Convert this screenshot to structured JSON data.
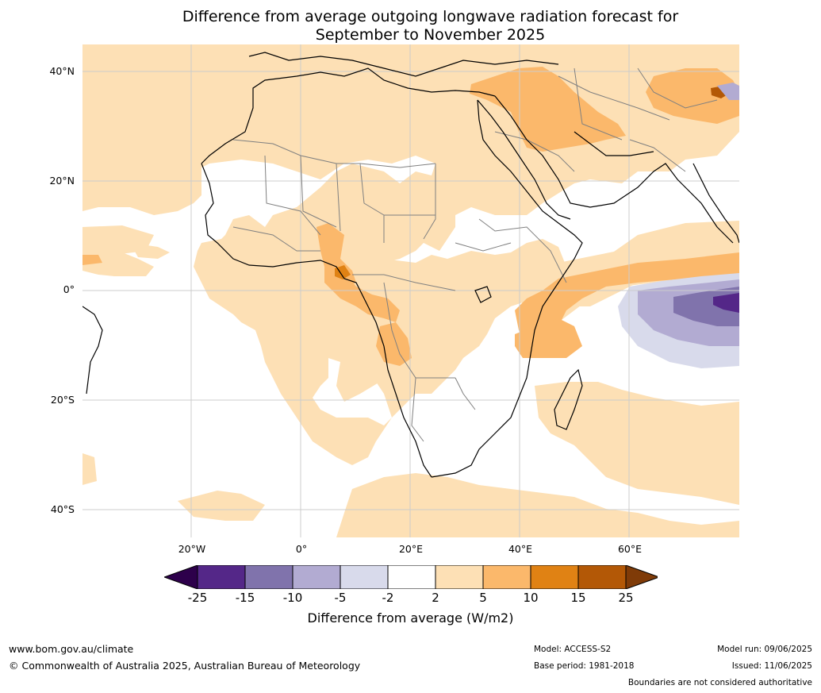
{
  "title": {
    "line1": "Difference from average outgoing longwave radiation forecast for",
    "line2": "September to November 2025"
  },
  "map": {
    "lat_labels": [
      "40°N",
      "20°N",
      "0°",
      "20°S",
      "40°S"
    ],
    "lon_labels": [
      "20°W",
      "0°",
      "20°E",
      "40°E",
      "60°E"
    ],
    "palette": {
      "neutral": "#ffffff",
      "pos_2_5": "#fde0b5",
      "pos_5_10": "#fbb86b",
      "pos_10_15": "#e08214",
      "pos_15_25": "#b35806",
      "neg_2_5": "#d8daeb",
      "neg_5_10": "#b2abd2",
      "neg_10_15": "#8073ac",
      "neg_15_25": "#542788",
      "coast": "#000000",
      "borders": "#808080",
      "grid": "#cccccc"
    }
  },
  "colorbar": {
    "tick_labels": [
      "-25",
      "-15",
      "-10",
      "-5",
      "-2",
      "2",
      "5",
      "10",
      "15",
      "25"
    ],
    "colors": [
      "#542788",
      "#8073ac",
      "#b2abd2",
      "#d8daeb",
      "#ffffff",
      "#fde0b5",
      "#fbb86b",
      "#e08214",
      "#b35806"
    ],
    "under_color": "#2d004b",
    "over_color": "#7f3b08",
    "title": "Difference from average (W/m2)"
  },
  "footer": {
    "website": "www.bom.gov.au/climate",
    "copyright": "© Commonwealth of Australia 2025, Australian Bureau of Meteorology",
    "model": "Model: ACCESS-S2",
    "base_period": "Base period: 1981-2018",
    "model_run": "Model run: 09/06/2025",
    "issued": "Issued: 11/06/2025",
    "disclaimer": "Boundaries are not considered authoritative"
  }
}
